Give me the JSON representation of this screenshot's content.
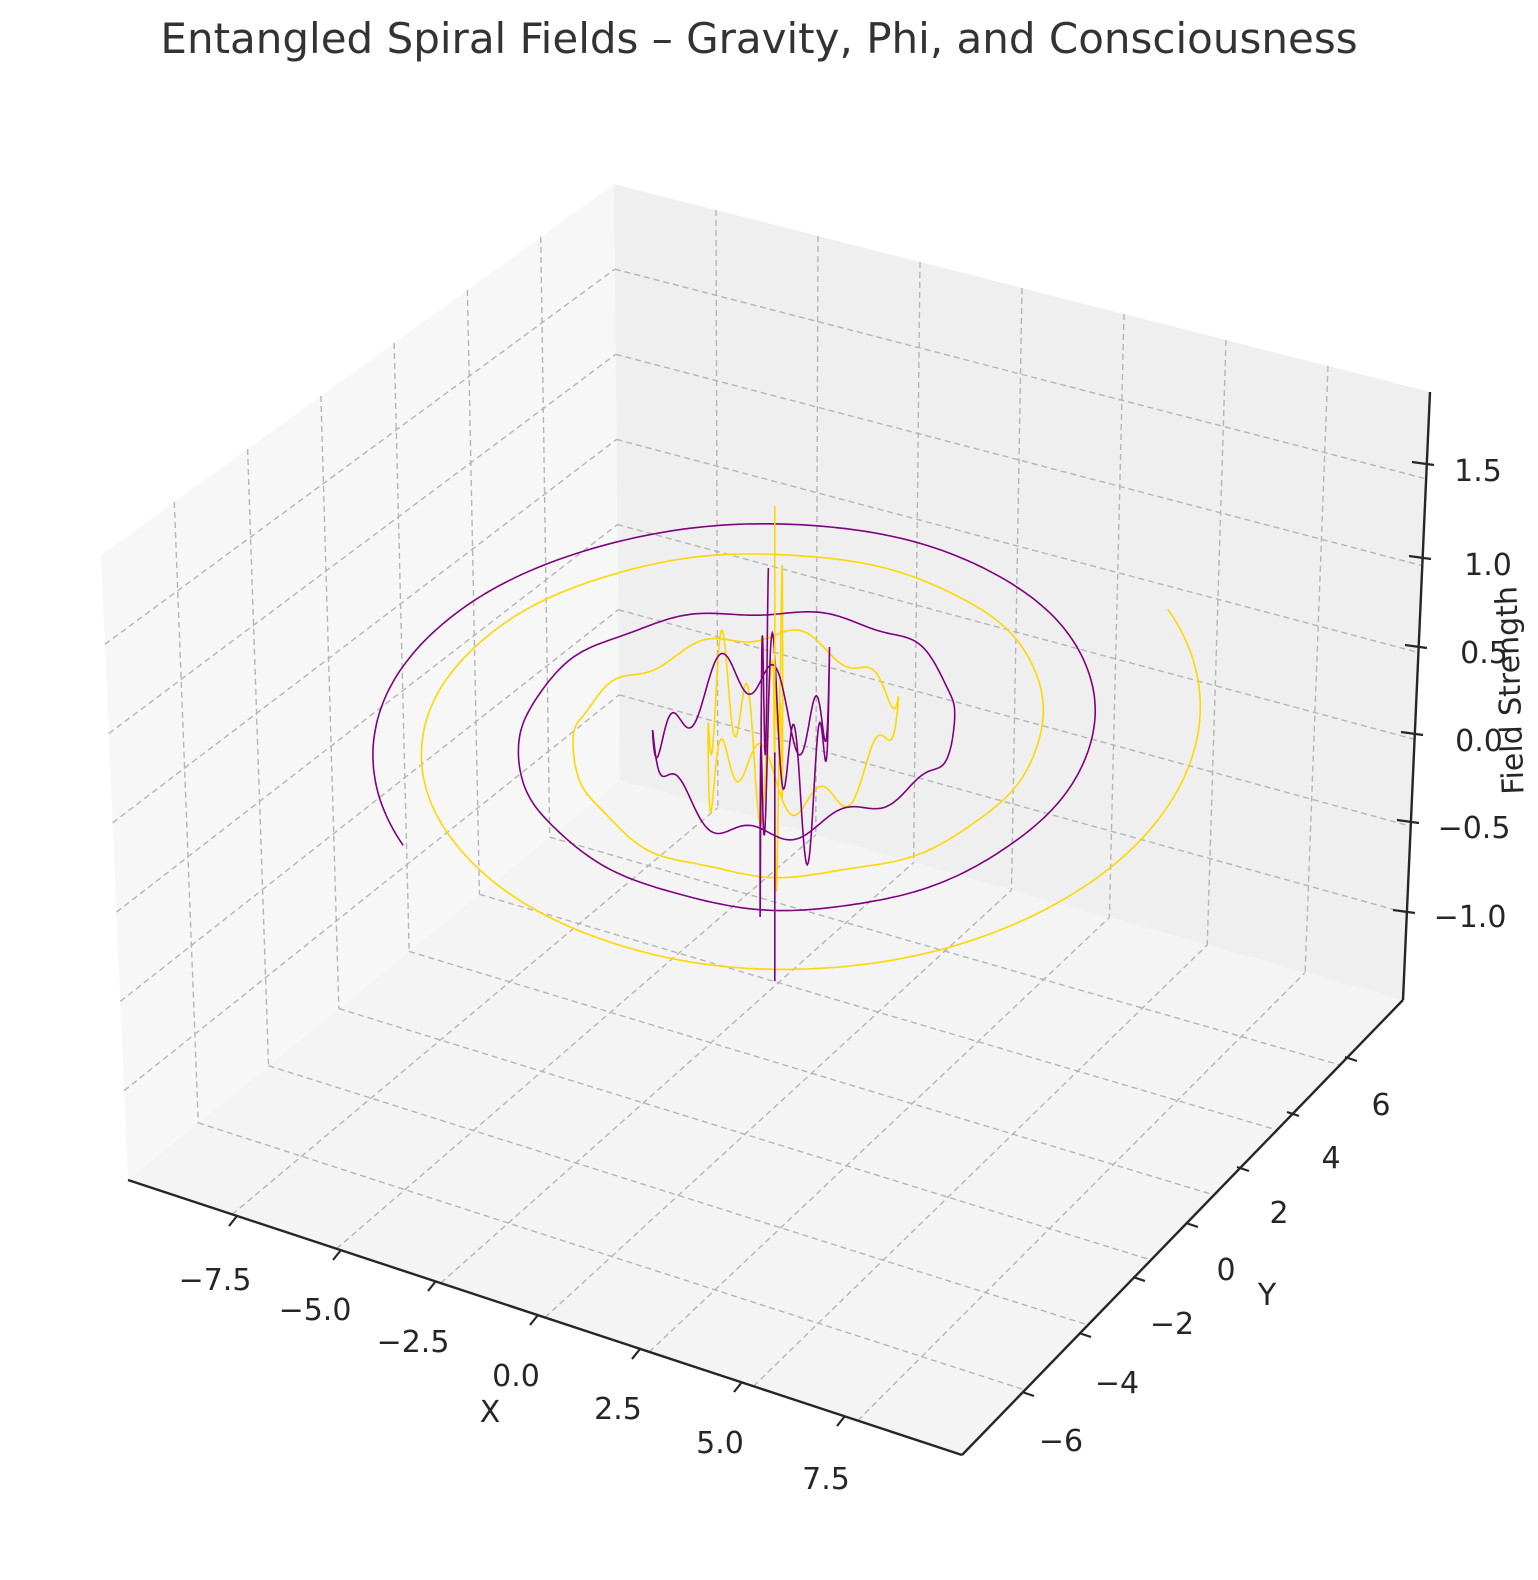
{
  "chart_data": {
    "type": "line",
    "projection": "3d",
    "title": "Entangled Spiral Fields – Gravity, Phi, and Consciousness",
    "xlabel": "X",
    "ylabel": "Y",
    "zlabel": "Field Strength",
    "xlim": [
      -10,
      10
    ],
    "ylim": [
      -7.5,
      7.5
    ],
    "zlim": [
      -1.45,
      1.8
    ],
    "xticks": [
      "−7.5",
      "−5.0",
      "−2.5",
      "0.0",
      "2.5",
      "5.0",
      "7.5"
    ],
    "yticks": [
      "−6",
      "−4",
      "−2",
      "0",
      "2",
      "4",
      "6"
    ],
    "zticks": [
      "−1.0",
      "−0.5",
      "0.0",
      "0.5",
      "1.0",
      "1.5"
    ],
    "grid": true,
    "legend": "none",
    "series": [
      {
        "color": "#ffd700",
        "spiral_turns": 3.1,
        "outer_radius": 8.2,
        "z_range": [
          -0.3,
          1.3
        ]
      },
      {
        "color": "#800080",
        "spiral_turns": 3.1,
        "outer_radius": 7.6,
        "z_range": [
          -1.4,
          0.3
        ]
      }
    ]
  }
}
